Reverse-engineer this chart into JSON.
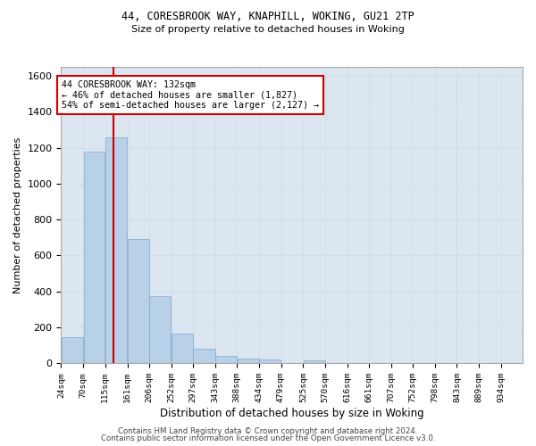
{
  "title1": "44, CORESBROOK WAY, KNAPHILL, WOKING, GU21 2TP",
  "title2": "Size of property relative to detached houses in Woking",
  "xlabel": "Distribution of detached houses by size in Woking",
  "ylabel": "Number of detached properties",
  "footer1": "Contains HM Land Registry data © Crown copyright and database right 2024.",
  "footer2": "Contains public sector information licensed under the Open Government Licence v3.0.",
  "bin_labels": [
    "24sqm",
    "70sqm",
    "115sqm",
    "161sqm",
    "206sqm",
    "252sqm",
    "297sqm",
    "343sqm",
    "388sqm",
    "434sqm",
    "479sqm",
    "525sqm",
    "570sqm",
    "616sqm",
    "661sqm",
    "707sqm",
    "752sqm",
    "798sqm",
    "843sqm",
    "889sqm",
    "934sqm"
  ],
  "bar_values": [
    145,
    1180,
    1260,
    690,
    375,
    165,
    80,
    40,
    25,
    20,
    0,
    15,
    0,
    0,
    0,
    0,
    0,
    0,
    0,
    0,
    0
  ],
  "bar_color": "#b8d0e8",
  "bar_edgecolor": "#7aaac8",
  "grid_color": "#d0d8e8",
  "bg_color": "#dce6f0",
  "property_size": 132,
  "annotation_line1": "44 CORESBROOK WAY: 132sqm",
  "annotation_line2": "← 46% of detached houses are smaller (1,827)",
  "annotation_line3": "54% of semi-detached houses are larger (2,127) →",
  "annotation_box_color": "#ffffff",
  "annotation_border_color": "#cc0000",
  "red_line_color": "#cc0000",
  "ylim": [
    0,
    1650
  ],
  "bin_edges": [
    24,
    70,
    115,
    161,
    206,
    252,
    297,
    343,
    388,
    434,
    479,
    525,
    570,
    616,
    661,
    707,
    752,
    798,
    843,
    889,
    934,
    979
  ]
}
